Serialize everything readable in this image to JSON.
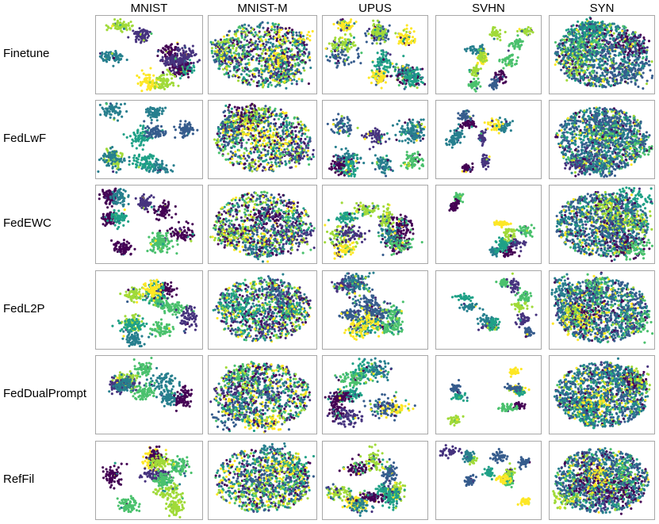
{
  "chart_data": {
    "type": "scatter",
    "columns": [
      "MNIST",
      "MNIST-M",
      "UPUS",
      "SVHN",
      "SYN"
    ],
    "rows": [
      "Finetune",
      "FedLwF",
      "FedEWC",
      "FedL2P",
      "FedDualPrompt",
      "RefFil"
    ],
    "palette": [
      "#440154",
      "#46337e",
      "#365c8d",
      "#277f8e",
      "#1fa187",
      "#4ac16d",
      "#a0da39",
      "#fde725"
    ],
    "column_styles": {
      "MNIST": "clustered",
      "MNIST-M": "blob",
      "UPUS": "scattered-clusters",
      "SVHN": "tight-clusters",
      "SYN": "dense-blob"
    }
  },
  "colors": {
    "panel_border": "#a8a8a8",
    "background": "#ffffff"
  }
}
